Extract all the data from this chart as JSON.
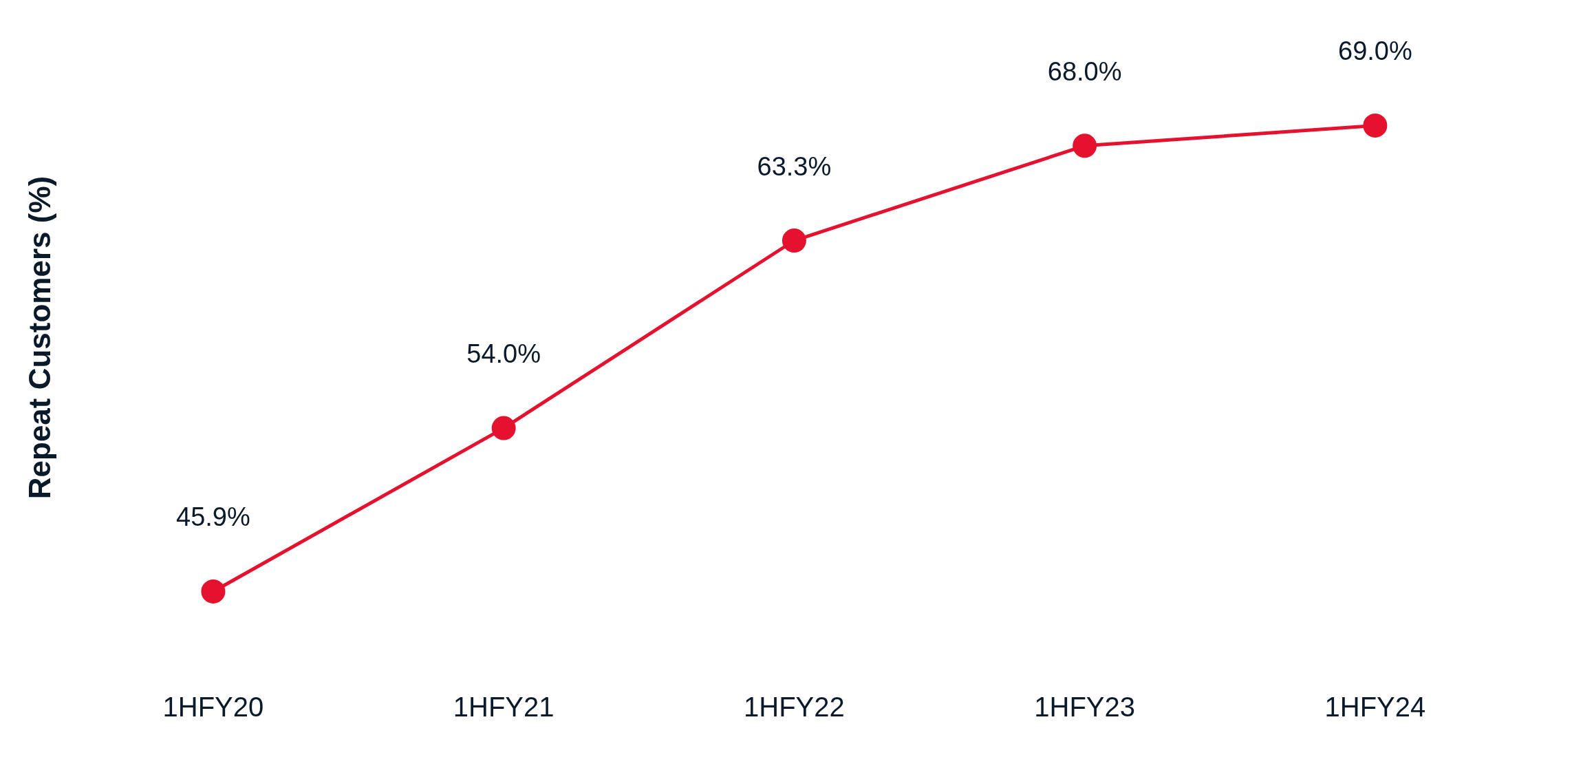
{
  "chart_data": {
    "type": "line",
    "ylabel": "Repeat Customers (%)",
    "categories": [
      "1HFY20",
      "1HFY21",
      "1HFY22",
      "1HFY23",
      "1HFY24"
    ],
    "series": [
      {
        "color": "#e4122f",
        "values": [
          45.9,
          54.0,
          63.3,
          68.0,
          69.0
        ],
        "value_labels": [
          "45.9%",
          "54.0%",
          "63.3%",
          "68.0%",
          "69.0%"
        ]
      }
    ],
    "marker": "circle",
    "grid": false,
    "legend": false,
    "tick_labels": "x"
  }
}
